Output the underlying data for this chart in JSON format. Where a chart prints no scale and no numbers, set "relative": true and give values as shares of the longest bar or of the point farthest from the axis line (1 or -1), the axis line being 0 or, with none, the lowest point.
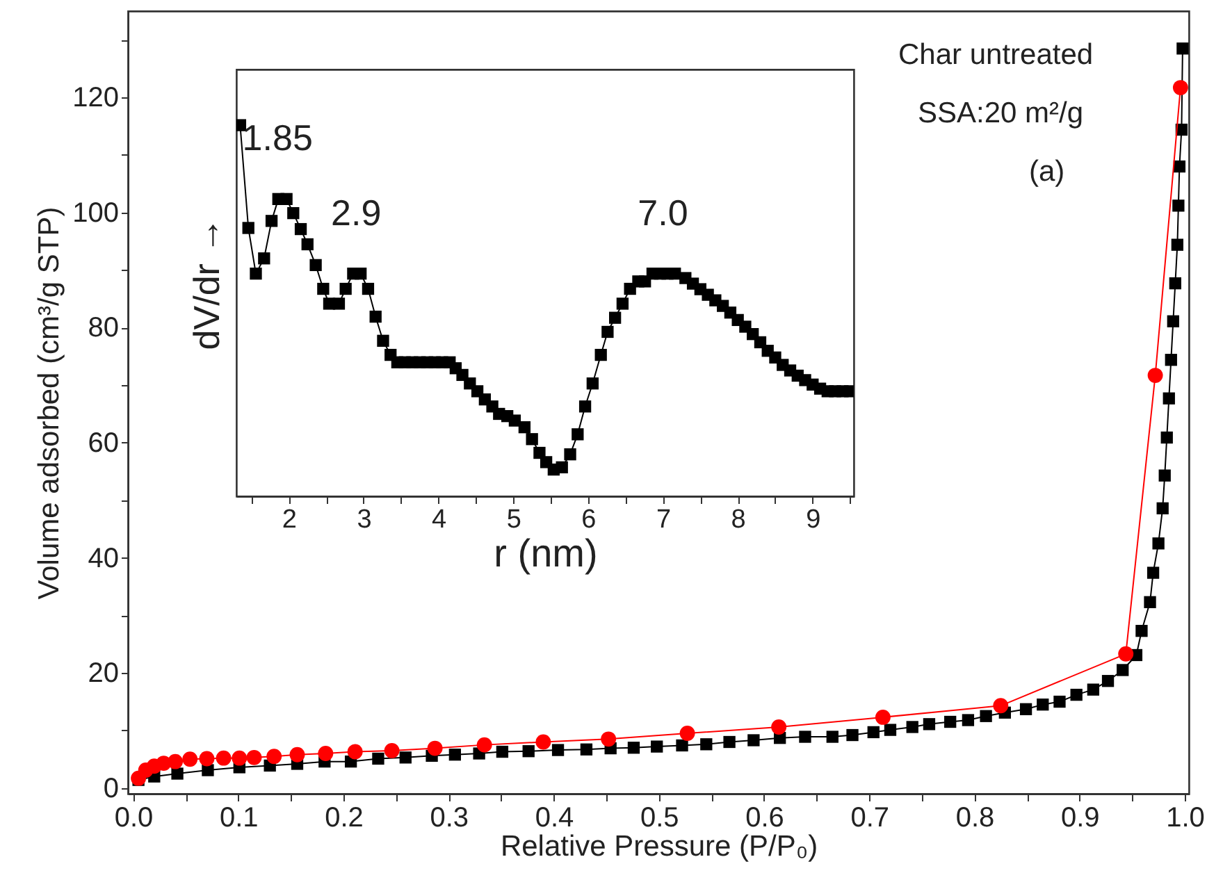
{
  "chart_data": [
    {
      "type": "line",
      "xlabel": "Relative Pressure (P/P₀)",
      "ylabel": "Volume adsorbed (cm³/g STP)",
      "annotations": [
        "Char untreated",
        "SSA:20 m²/g",
        "(a)"
      ],
      "xlim": [
        -0.005,
        1.004
      ],
      "ylim": [
        -1,
        135
      ],
      "xticks": [
        {
          "value": 0,
          "label": "0.0"
        },
        {
          "value": 0.05,
          "label": null
        },
        {
          "value": 0.1,
          "label": "0.1"
        },
        {
          "value": 0.15,
          "label": null
        },
        {
          "value": 0.2,
          "label": "0.2"
        },
        {
          "value": 0.25,
          "label": null
        },
        {
          "value": 0.3,
          "label": "0.3"
        },
        {
          "value": 0.35,
          "label": null
        },
        {
          "value": 0.4,
          "label": "0.4"
        },
        {
          "value": 0.45,
          "label": null
        },
        {
          "value": 0.5,
          "label": "0.5"
        },
        {
          "value": 0.55,
          "label": null
        },
        {
          "value": 0.6,
          "label": "0.6"
        },
        {
          "value": 0.65,
          "label": null
        },
        {
          "value": 0.7,
          "label": "0.7"
        },
        {
          "value": 0.75,
          "label": null
        },
        {
          "value": 0.8,
          "label": "0.8"
        },
        {
          "value": 0.85,
          "label": null
        },
        {
          "value": 0.9,
          "label": "0.9"
        },
        {
          "value": 0.95,
          "label": null
        },
        {
          "value": 1,
          "label": "1.0"
        }
      ],
      "yticks": [
        0,
        {
          "value": 10,
          "label": null
        },
        20,
        {
          "value": 30,
          "label": null
        },
        40,
        {
          "value": 50,
          "label": null
        },
        60,
        {
          "value": 70,
          "label": null
        },
        80,
        {
          "value": 90,
          "label": null
        },
        100,
        {
          "value": 110,
          "label": null
        },
        120,
        {
          "value": 130,
          "label": null
        }
      ],
      "grid": false,
      "series": [
        {
          "type": "line",
          "marker": "square",
          "color": "#000000",
          "x": [
            0.005,
            0.02,
            0.042,
            0.071,
            0.101,
            0.13,
            0.156,
            0.182,
            0.207,
            0.233,
            0.259,
            0.284,
            0.306,
            0.329,
            0.351,
            0.376,
            0.404,
            0.431,
            0.454,
            0.476,
            0.498,
            0.522,
            0.545,
            0.567,
            0.59,
            0.615,
            0.639,
            0.665,
            0.684,
            0.704,
            0.72,
            0.741,
            0.757,
            0.777,
            0.794,
            0.811,
            0.829,
            0.849,
            0.865,
            0.881,
            0.897,
            0.913,
            0.927,
            0.941,
            0.954,
            0.959,
            0.967,
            0.97,
            0.975,
            0.979,
            0.981,
            0.983,
            0.985,
            0.987,
            0.989,
            0.991,
            0.993,
            0.994,
            0.995,
            0.997,
            0.998
          ],
          "values": [
            1.4,
            2.0,
            2.5,
            3.1,
            3.6,
            3.9,
            4.2,
            4.6,
            4.6,
            5.1,
            5.3,
            5.6,
            5.8,
            6.0,
            6.3,
            6.4,
            6.6,
            6.7,
            6.9,
            7.0,
            7.2,
            7.4,
            7.6,
            8.0,
            8.3,
            8.7,
            8.9,
            8.9,
            9.2,
            9.7,
            10.1,
            10.6,
            11.1,
            11.5,
            11.8,
            12.5,
            13.1,
            13.7,
            14.5,
            15.0,
            16.2,
            17.1,
            18.6,
            20.5,
            23.1,
            27.3,
            32.3,
            37.4,
            42.5,
            48.6,
            54.3,
            60.9,
            67.7,
            74.4,
            81.1,
            87.7,
            94.4,
            101.2,
            108,
            114.4,
            128.5
          ]
        },
        {
          "type": "line",
          "marker": "circle",
          "color": "#ff0000",
          "x": [
            0.005,
            0.012,
            0.02,
            0.029,
            0.04,
            0.054,
            0.07,
            0.086,
            0.101,
            0.115,
            0.134,
            0.156,
            0.183,
            0.211,
            0.246,
            0.287,
            0.334,
            0.39,
            0.452,
            0.527,
            0.614,
            0.713,
            0.825,
            0.944,
            0.972,
            0.996
          ],
          "values": [
            1.7,
            3.1,
            3.8,
            4.3,
            4.6,
            5.0,
            5.1,
            5.2,
            5.2,
            5.3,
            5.5,
            5.8,
            6.0,
            6.3,
            6.5,
            6.9,
            7.5,
            8.0,
            8.5,
            9.5,
            10.6,
            12.3,
            14.3,
            23.3,
            71.7,
            121.7
          ]
        }
      ]
    },
    {
      "type": "line",
      "marker": "square",
      "relative": true,
      "xlabel": "r (nm)",
      "ylabel": "dV/dr →",
      "xlim": [
        1.3,
        9.55
      ],
      "xticks": [
        {
          "value": 1.5,
          "label": null
        },
        2,
        {
          "value": 2.5,
          "label": null
        },
        3,
        {
          "value": 3.5,
          "label": null
        },
        4,
        {
          "value": 4.5,
          "label": null
        },
        5,
        {
          "value": 5.5,
          "label": null
        },
        6,
        {
          "value": 6.5,
          "label": null
        },
        7,
        {
          "value": 7.5,
          "label": null
        },
        8,
        {
          "value": 8.5,
          "label": null
        },
        9,
        {
          "value": 9.5,
          "label": null
        }
      ],
      "annotations": [
        {
          "text": "1.85",
          "x": 1.85,
          "y": 0.801
        },
        {
          "text": "2.9",
          "x": 2.9,
          "y": 0.6
        },
        {
          "text": "7.0",
          "x": 7.0,
          "y": 0.6
        }
      ],
      "grid": false,
      "series": [
        {
          "color": "#000000",
          "x": [
            1.35,
            1.46,
            1.56,
            1.67,
            1.77,
            1.86,
            1.97,
            2.06,
            2.16,
            2.25,
            2.36,
            2.46,
            2.54,
            2.67,
            2.76,
            2.86,
            2.96,
            3.06,
            3.16,
            3.26,
            3.36,
            3.45,
            3.55,
            3.65,
            3.75,
            3.85,
            3.95,
            4.05,
            4.15,
            4.23,
            4.32,
            4.42,
            4.52,
            4.62,
            4.72,
            4.81,
            4.92,
            5.02,
            5.15,
            5.25,
            5.35,
            5.44,
            5.54,
            5.65,
            5.76,
            5.86,
            5.96,
            6.06,
            6.17,
            6.26,
            6.36,
            6.46,
            6.56,
            6.67,
            6.76,
            6.86,
            6.96,
            7.06,
            7.16,
            7.3,
            7.4,
            7.5,
            7.6,
            7.7,
            7.8,
            7.9,
            8.0,
            8.1,
            8.2,
            8.3,
            8.4,
            8.5,
            8.6,
            8.7,
            8.8,
            8.9,
            9.0,
            9.1,
            9.2,
            9.3,
            9.4,
            9.5
          ],
          "values": [
            1.0,
            0.723,
            0.6,
            0.641,
            0.742,
            0.801,
            0.801,
            0.763,
            0.72,
            0.679,
            0.623,
            0.559,
            0.519,
            0.519,
            0.559,
            0.6,
            0.6,
            0.559,
            0.484,
            0.419,
            0.381,
            0.361,
            0.361,
            0.361,
            0.361,
            0.361,
            0.361,
            0.361,
            0.361,
            0.345,
            0.327,
            0.304,
            0.283,
            0.261,
            0.242,
            0.222,
            0.216,
            0.204,
            0.186,
            0.154,
            0.117,
            0.092,
            0.072,
            0.078,
            0.113,
            0.167,
            0.242,
            0.304,
            0.381,
            0.443,
            0.481,
            0.519,
            0.559,
            0.579,
            0.579,
            0.6,
            0.6,
            0.6,
            0.6,
            0.588,
            0.573,
            0.558,
            0.543,
            0.528,
            0.513,
            0.495,
            0.475,
            0.457,
            0.437,
            0.415,
            0.392,
            0.374,
            0.354,
            0.339,
            0.325,
            0.313,
            0.301,
            0.29,
            0.283,
            0.283,
            0.283,
            0.283
          ]
        }
      ]
    }
  ]
}
